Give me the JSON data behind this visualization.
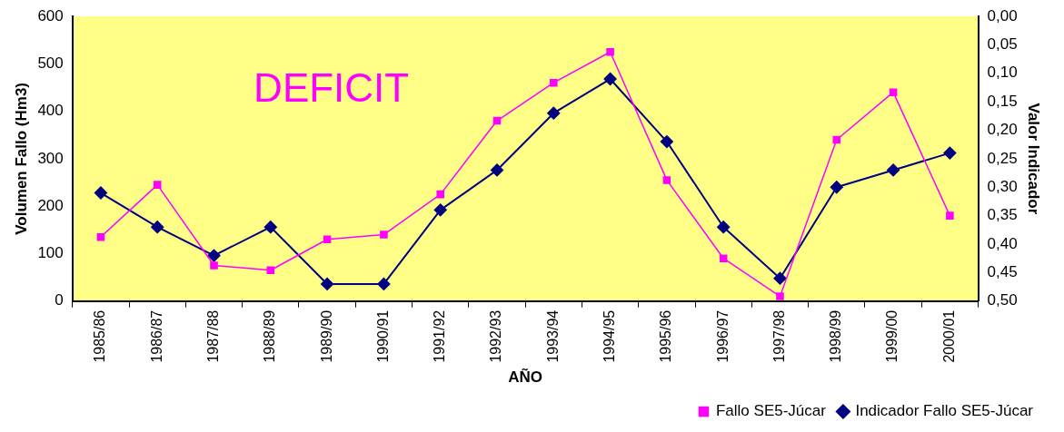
{
  "chart_data": {
    "type": "line",
    "xlabel": "AÑO",
    "ylabel": "Volumen Fallo (Hm3)",
    "y2label": "Valor Indicador",
    "annotations": [
      "DEFICIT"
    ],
    "categories": [
      "1985/86",
      "1986/87",
      "1987/88",
      "1988/89",
      "1989/90",
      "1990/91",
      "1991/92",
      "1992/93",
      "1993/94",
      "1994/95",
      "1995/96",
      "1996/97",
      "1997/98",
      "1998/99",
      "1999/00",
      "2000/01"
    ],
    "series": [
      {
        "name": "Fallo SE5-Júcar",
        "color": "#ff00ff",
        "marker": "square",
        "values": [
          135,
          245,
          75,
          65,
          130,
          140,
          225,
          380,
          460,
          525,
          255,
          90,
          10,
          340,
          440,
          180
        ]
      },
      {
        "name": "Indicador Fallo SE5-Júcar",
        "color": "#000080",
        "marker": "diamond",
        "axis": "y2",
        "values": [
          0.31,
          0.37,
          0.42,
          0.37,
          0.47,
          0.47,
          0.34,
          0.27,
          0.17,
          0.11,
          0.22,
          0.37,
          0.46,
          0.3,
          0.27,
          0.24
        ]
      }
    ],
    "ylim": [
      0,
      600
    ],
    "yticks": [
      0,
      100,
      200,
      300,
      400,
      500,
      600
    ],
    "y2lim": [
      0.5,
      0
    ],
    "y2ticks": [
      {
        "value": 0,
        "label": "0,00"
      },
      {
        "value": 0.05,
        "label": "0,05"
      },
      {
        "value": 0.1,
        "label": "0,10"
      },
      {
        "value": 0.15,
        "label": "0,15"
      },
      {
        "value": 0.2,
        "label": "0,20"
      },
      {
        "value": 0.25,
        "label": "0,25"
      },
      {
        "value": 0.3,
        "label": "0,30"
      },
      {
        "value": 0.35,
        "label": "0,35"
      },
      {
        "value": 0.4,
        "label": "0,40"
      },
      {
        "value": 0.45,
        "label": "0,45"
      },
      {
        "value": 0.5,
        "label": "0,50"
      }
    ],
    "grid": false,
    "legend": "bottom right",
    "line_style": "solid"
  }
}
